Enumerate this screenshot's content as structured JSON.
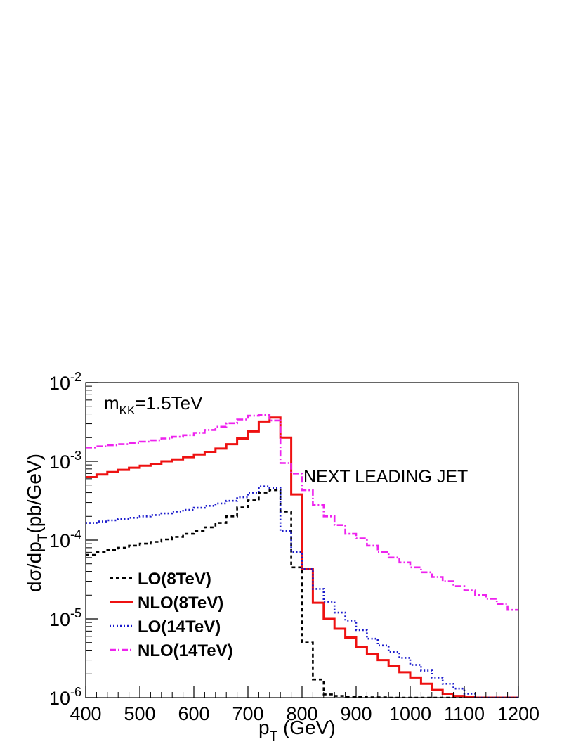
{
  "chart_data": {
    "type": "line",
    "title": "",
    "xlabel": "p_T (GeV)",
    "ylabel": "dσ/dp_T (pb/GeV)",
    "xlabel_parts": {
      "main": "p",
      "sub": "T",
      "rest": " (GeV)"
    },
    "ylabel_parts": {
      "main": "dσ/dp",
      "sub": "T",
      "rest": "(pb/GeV)"
    },
    "xlim": [
      400,
      1200
    ],
    "ylim": [
      1e-06,
      0.01
    ],
    "yscale": "log",
    "x_ticks": [
      "400",
      "500",
      "600",
      "700",
      "800",
      "900",
      "1000",
      "1100",
      "1200"
    ],
    "y_ticks": [
      {
        "base": "10",
        "exp": "-6"
      },
      {
        "base": "10",
        "exp": "-5"
      },
      {
        "base": "10",
        "exp": "-4"
      },
      {
        "base": "10",
        "exp": "-3"
      },
      {
        "base": "10",
        "exp": "-2"
      }
    ],
    "annotations": {
      "mass": {
        "main": "m",
        "sub": "KK",
        "rest": "=1.5TeV"
      },
      "jet": "NEXT LEADING JET"
    },
    "legend_position": "bottom-left",
    "bin_edges_start": 400,
    "bin_width": 20,
    "series": [
      {
        "name": "LO(8TeV)",
        "color": "#000000",
        "dash": "5,4",
        "values": [
          6.5e-05,
          7e-05,
          7.5e-05,
          8e-05,
          8.5e-05,
          9e-05,
          9.5e-05,
          0.000102,
          0.00011,
          0.00012,
          0.00013,
          0.000145,
          0.000165,
          0.0002,
          0.00026,
          0.00032,
          0.0004,
          0.00043,
          0.00023,
          4.5e-05,
          5e-06,
          1.7e-06,
          1.1e-06,
          1.05e-06,
          1.03e-06,
          1.02e-06,
          1.01e-06,
          1.01e-06,
          1e-06,
          1e-06,
          1e-06,
          1e-06,
          1e-06,
          1e-06,
          1e-06,
          1e-06,
          1e-06,
          1e-06,
          1e-06,
          1e-06
        ]
      },
      {
        "name": "NLO(8TeV)",
        "color": "#ee1111",
        "dash": "",
        "values": [
          0.00063,
          0.00068,
          0.00073,
          0.00078,
          0.00083,
          0.00088,
          0.00093,
          0.001,
          0.00106,
          0.00113,
          0.00122,
          0.00132,
          0.00145,
          0.00165,
          0.00195,
          0.0024,
          0.0032,
          0.0036,
          0.002,
          0.00038,
          4.3e-05,
          1.6e-05,
          1e-05,
          7.5e-06,
          5.8e-06,
          4.4e-06,
          3.6e-06,
          3e-06,
          2.5e-06,
          2.1e-06,
          1.8e-06,
          1.5e-06,
          1.25e-06,
          1.12e-06,
          1.05e-06,
          1.02e-06,
          1e-06,
          1e-06,
          1e-06,
          1e-06
        ]
      },
      {
        "name": "LO(14TeV)",
        "color": "#1a1acc",
        "dash": "2,3",
        "values": [
          0.000165,
          0.000172,
          0.000178,
          0.000185,
          0.000192,
          0.0002,
          0.000208,
          0.000218,
          0.00023,
          0.000242,
          0.000257,
          0.000272,
          0.000292,
          0.000315,
          0.00035,
          0.0004,
          0.00048,
          0.00046,
          0.00013,
          7e-05,
          4.3e-05,
          2.4e-05,
          1.65e-05,
          1.2e-05,
          9.5e-06,
          7.2e-06,
          5.6e-06,
          4.6e-06,
          3.8e-06,
          3.2e-06,
          2.6e-06,
          2.2e-06,
          1.8e-06,
          1.5e-06,
          1.3e-06,
          1.12e-06,
          1e-06,
          1e-06,
          1e-06,
          1e-06
        ]
      },
      {
        "name": "NLO(14TeV)",
        "color": "#ee22ee",
        "dash": "9,3,2,3",
        "values": [
          0.0015,
          0.00155,
          0.0016,
          0.00165,
          0.0017,
          0.00178,
          0.00185,
          0.00195,
          0.00205,
          0.00215,
          0.0023,
          0.0025,
          0.00275,
          0.00305,
          0.0034,
          0.0038,
          0.0039,
          0.0033,
          0.00095,
          0.0007,
          0.00043,
          0.00028,
          0.0002,
          0.000155,
          0.00012,
          0.000105,
          8.5e-05,
          7e-05,
          6e-05,
          5.2e-05,
          4.5e-05,
          3.9e-05,
          3.4e-05,
          3e-05,
          2.6e-05,
          2.3e-05,
          2e-05,
          1.8e-05,
          1.55e-05,
          1.3e-05
        ]
      }
    ]
  }
}
